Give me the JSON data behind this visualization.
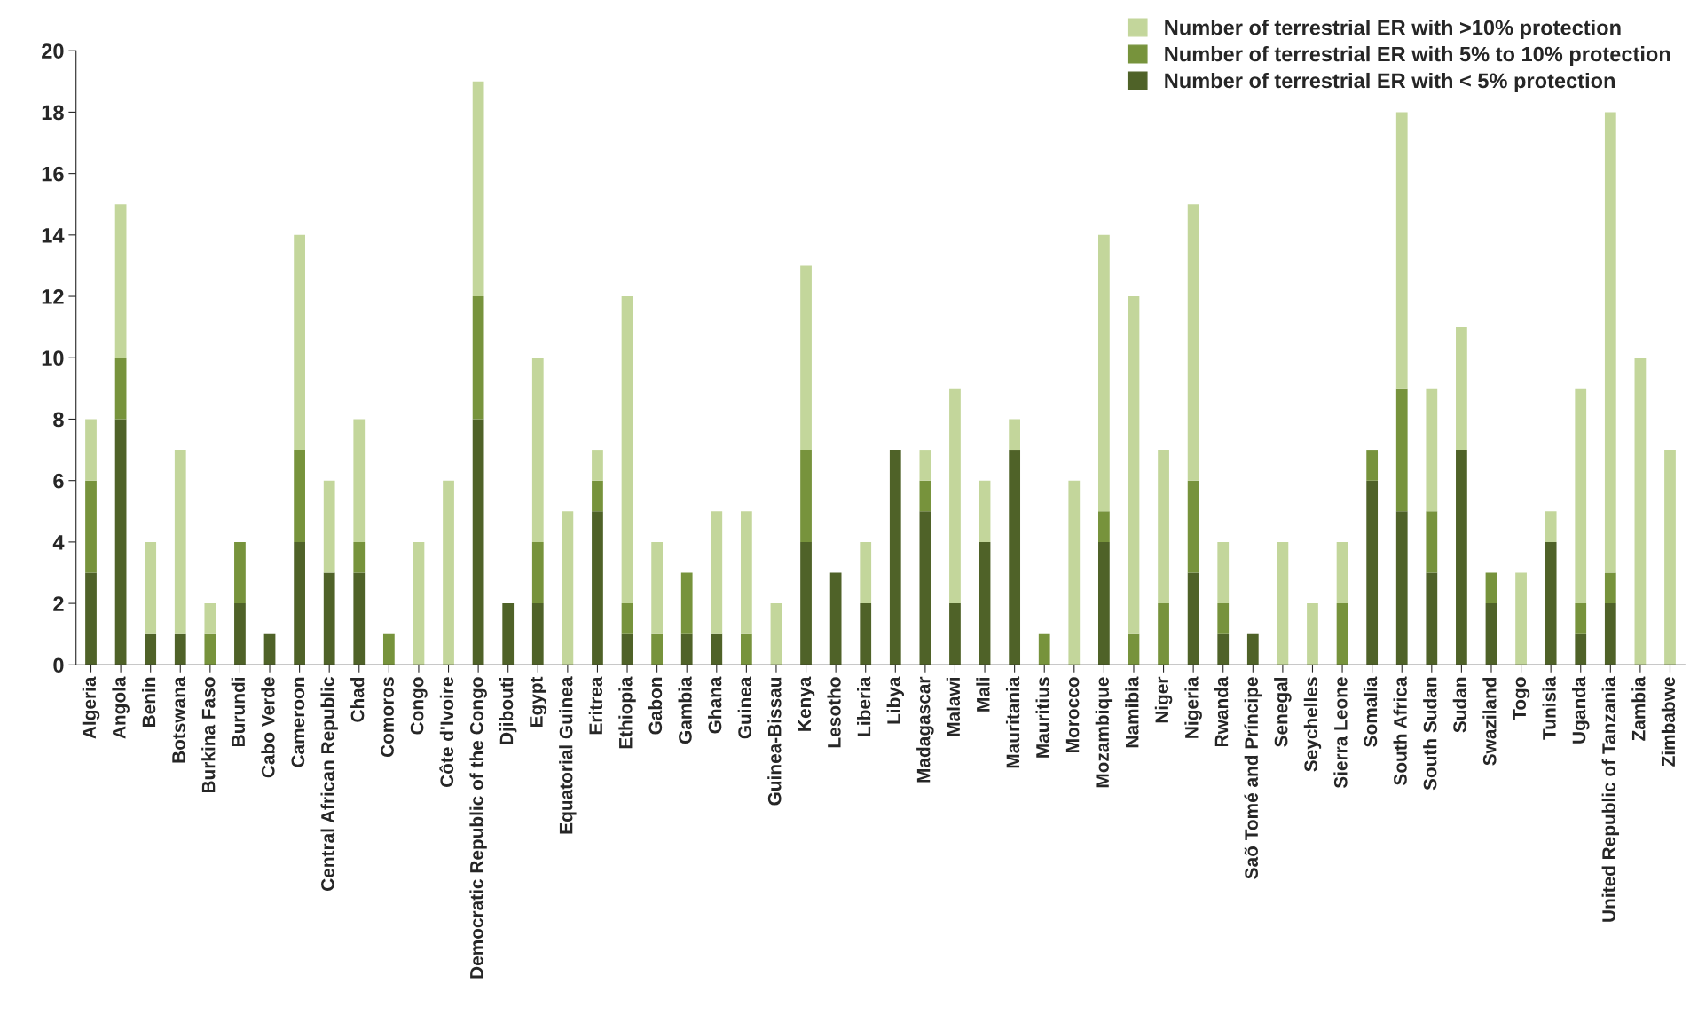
{
  "chart_data": {
    "type": "bar",
    "stacked": true,
    "categories": [
      "Algeria",
      "Angola",
      "Benin",
      "Botswana",
      "Burkina Faso",
      "Burundi",
      "Cabo Verde",
      "Cameroon",
      "Central African Republic",
      "Chad",
      "Comoros",
      "Congo",
      "Côte d'Ivoire",
      "Democratic Republic of the Congo",
      "Djibouti",
      "Egypt",
      "Equatorial Guinea",
      "Eritrea",
      "Ethiopia",
      "Gabon",
      "Gambia",
      "Ghana",
      "Guinea",
      "Guinea-Bissau",
      "Kenya",
      "Lesotho",
      "Liberia",
      "Libya",
      "Madagascar",
      "Malawi",
      "Mali",
      "Mauritania",
      "Mauritius",
      "Morocco",
      "Mozambique",
      "Namibia",
      "Niger",
      "Nigeria",
      "Rwanda",
      "Saõ Tomé and Príncipe",
      "Senegal",
      "Seychelles",
      "Sierra Leone",
      "Somalia",
      "South Africa",
      "South Sudan",
      "Sudan",
      "Swaziland",
      "Togo",
      "Tunisia",
      "Uganda",
      "United Republic of Tanzania",
      "Zambia",
      "Zimbabwe"
    ],
    "series": [
      {
        "name": "Number of terrestrial ER with < 5% protection",
        "color": "#4f6228",
        "values": [
          3,
          8,
          1,
          1,
          0,
          2,
          1,
          4,
          3,
          3,
          0,
          0,
          0,
          8,
          2,
          2,
          0,
          5,
          1,
          0,
          1,
          1,
          0,
          0,
          4,
          3,
          2,
          7,
          5,
          2,
          4,
          7,
          0,
          0,
          4,
          0,
          0,
          3,
          1,
          1,
          0,
          0,
          0,
          6,
          5,
          3,
          7,
          2,
          0,
          4,
          1,
          2,
          0,
          0
        ]
      },
      {
        "name": "Number of terrestrial ER with 5% to 10% protection",
        "color": "#77933c",
        "values": [
          3,
          2,
          0,
          0,
          1,
          2,
          0,
          3,
          0,
          1,
          1,
          0,
          0,
          4,
          0,
          2,
          0,
          1,
          1,
          1,
          2,
          0,
          1,
          0,
          3,
          0,
          0,
          0,
          1,
          0,
          0,
          0,
          1,
          0,
          1,
          1,
          2,
          3,
          1,
          0,
          0,
          0,
          2,
          1,
          4,
          2,
          0,
          1,
          0,
          0,
          1,
          1,
          0,
          0
        ]
      },
      {
        "name": "Number of terrestrial ER with >10% protection",
        "color": "#c3d69b",
        "values": [
          2,
          5,
          3,
          6,
          1,
          0,
          0,
          7,
          3,
          4,
          0,
          4,
          6,
          7,
          0,
          6,
          5,
          1,
          10,
          3,
          0,
          4,
          4,
          2,
          6,
          0,
          2,
          0,
          1,
          7,
          2,
          1,
          0,
          6,
          9,
          11,
          5,
          9,
          2,
          0,
          4,
          2,
          2,
          0,
          9,
          4,
          4,
          0,
          3,
          1,
          7,
          15,
          10,
          7
        ]
      }
    ],
    "ylim": [
      0,
      20
    ],
    "yticks": [
      0,
      2,
      4,
      6,
      8,
      10,
      12,
      14,
      16,
      18,
      20
    ],
    "grid": false,
    "legend": "top right"
  }
}
